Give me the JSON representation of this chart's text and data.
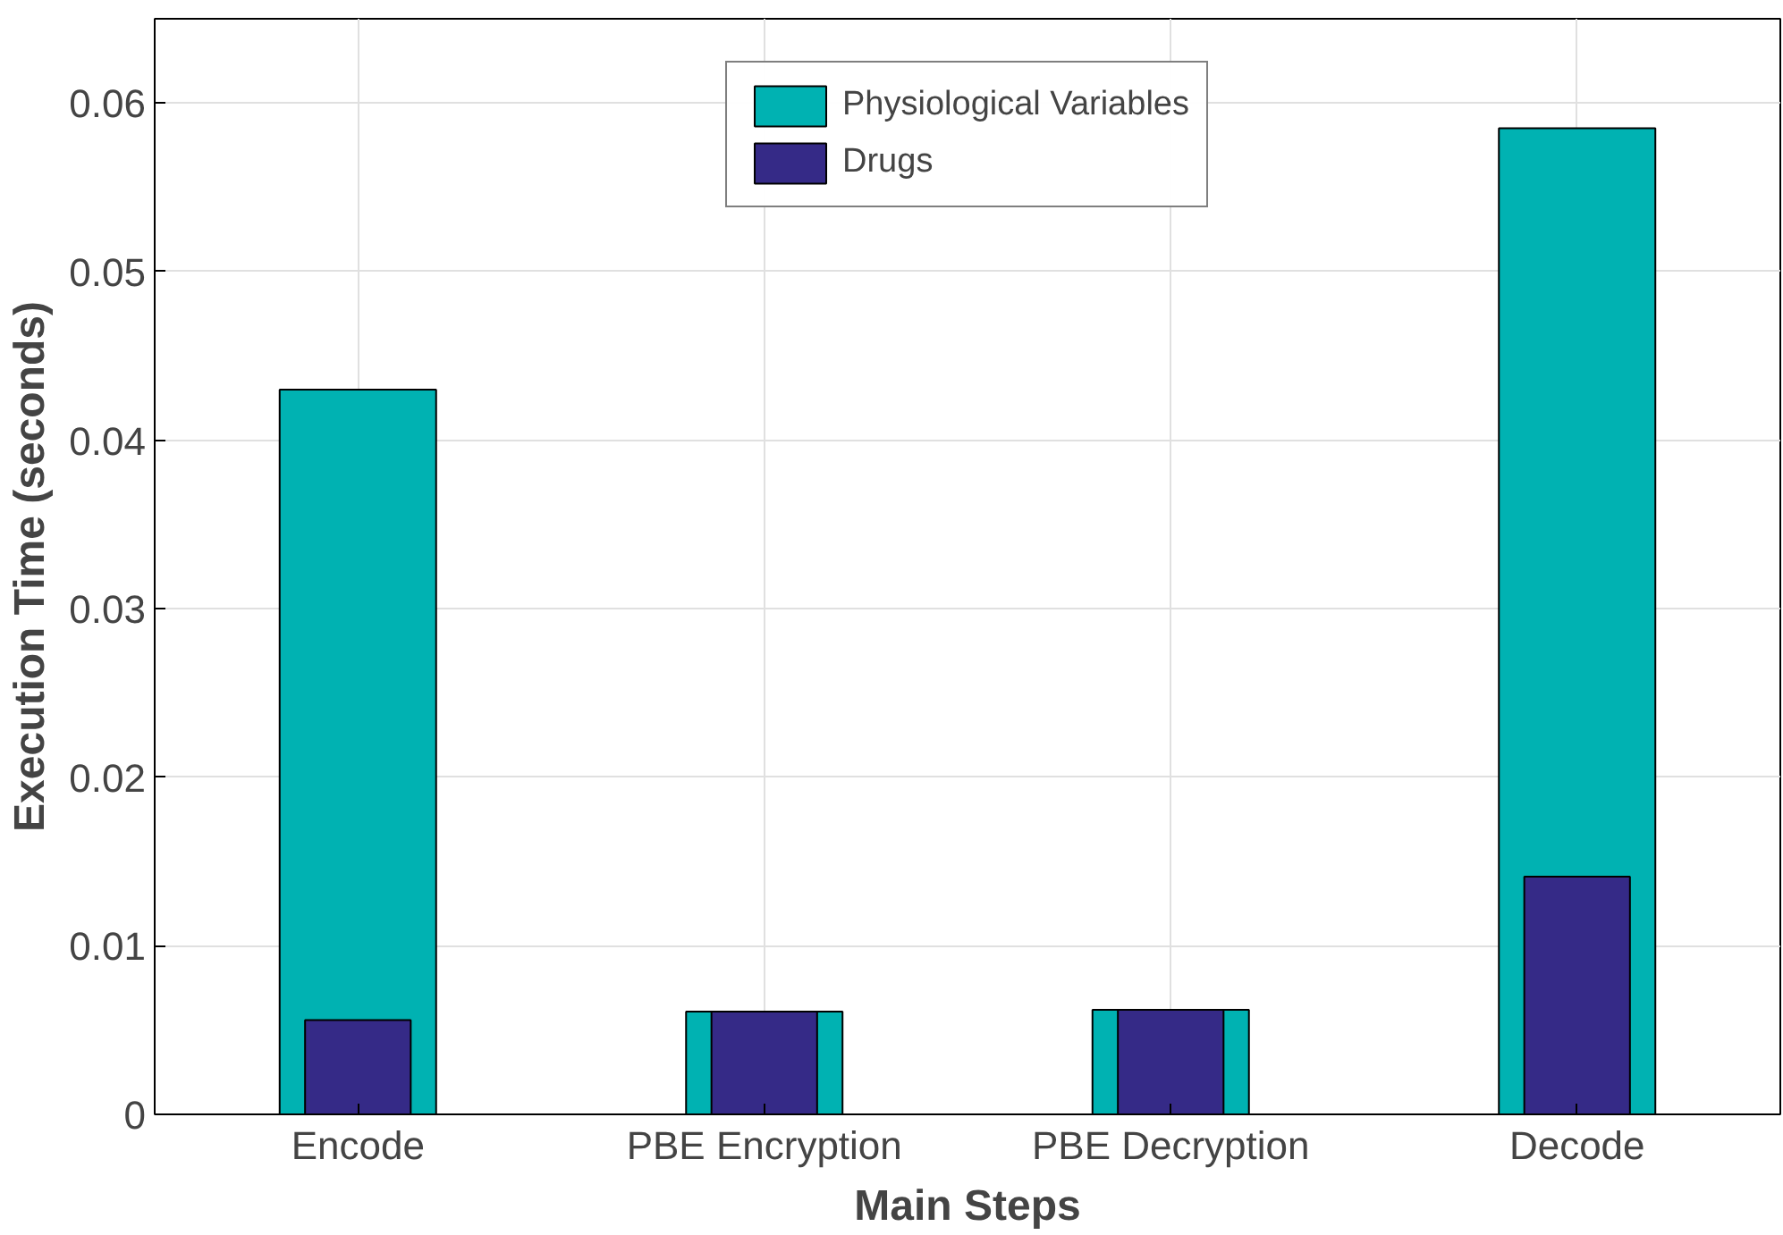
{
  "chart_data": {
    "type": "bar",
    "xlabel": "Main Steps",
    "ylabel": "Execution Time (seconds)",
    "categories": [
      "Encode",
      "PBE Encryption",
      "PBE Decryption",
      "Decode"
    ],
    "series": [
      {
        "name": "Physiological Variables",
        "color": "#00b2b2",
        "values": [
          0.043,
          0.0061,
          0.0062,
          0.0585
        ]
      },
      {
        "name": "Drugs",
        "color": "#352a87",
        "values": [
          0.0056,
          0.0061,
          0.0062,
          0.0141
        ]
      }
    ],
    "ylim": [
      0,
      0.065
    ],
    "yticks": [
      0,
      0.01,
      0.02,
      0.03,
      0.04,
      0.05,
      0.06
    ],
    "grid": true,
    "legend": "top"
  }
}
